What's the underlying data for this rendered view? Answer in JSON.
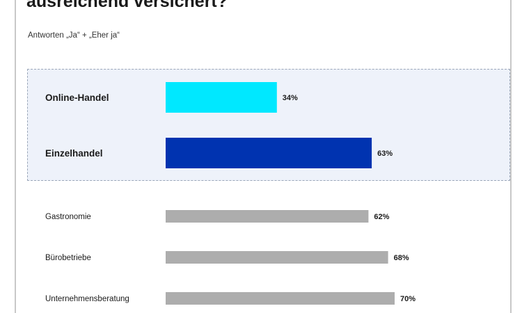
{
  "header": {
    "title": "ausreichend versichert?",
    "subtitle": "Antworten „Ja“ + „Eher ja“"
  },
  "colors": {
    "online": "#00e8ff",
    "einzel": "#0033b0",
    "other": "#adadad",
    "highlight_bg": "#eef2fa"
  },
  "chart_data": {
    "type": "bar",
    "orientation": "horizontal",
    "categories": [
      "Online-Handel",
      "Einzelhandel",
      "Gastronomie",
      "Bürobetriebe",
      "Unternehmensberatung"
    ],
    "values": [
      34,
      63,
      62,
      68,
      70
    ],
    "value_labels": [
      "34%",
      "63%",
      "62%",
      "68%",
      "70%"
    ],
    "highlighted": [
      true,
      true,
      false,
      false,
      false
    ],
    "unit": "%",
    "xlim": [
      0,
      100
    ],
    "grid": false
  }
}
